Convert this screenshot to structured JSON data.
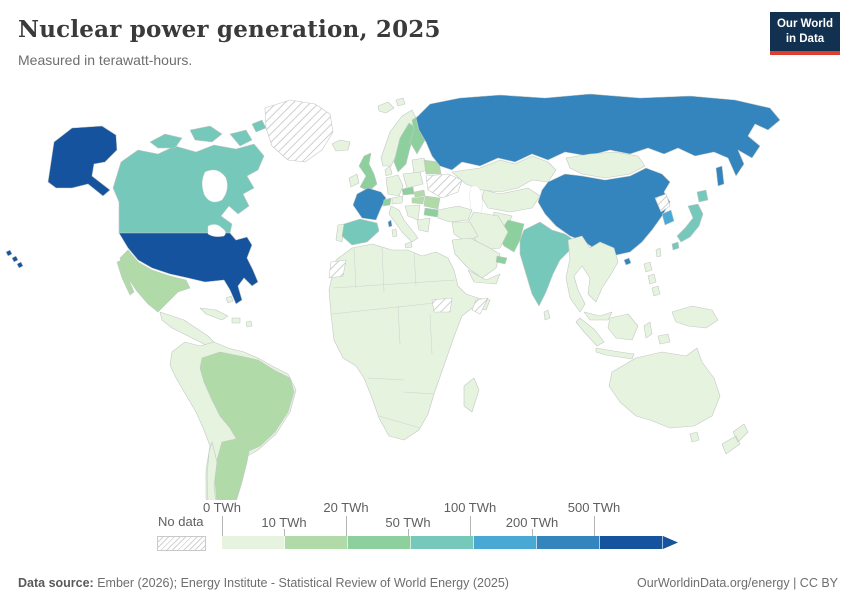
{
  "header": {
    "title": "Nuclear power generation, 2025",
    "subtitle": "Measured in terawatt-hours."
  },
  "logo": {
    "line1": "Our World",
    "line2": "in Data",
    "bg": "#12304f",
    "accent": "#dc3e32"
  },
  "legend": {
    "no_data_label": "No data",
    "ticks": [
      "0 TWh",
      "10 TWh",
      "20 TWh",
      "50 TWh",
      "100 TWh",
      "200 TWh",
      "500 TWh"
    ],
    "bins": [
      {
        "range": "0-10 TWh",
        "color": "#e6f3df"
      },
      {
        "range": "10-20 TWh",
        "color": "#b0daa8"
      },
      {
        "range": "20-50 TWh",
        "color": "#8ecf9e"
      },
      {
        "range": "50-100 TWh",
        "color": "#76c8ba"
      },
      {
        "range": "100-200 TWh",
        "color": "#4aa8d5"
      },
      {
        "range": "200-500 TWh",
        "color": "#3484be"
      },
      {
        "range": "500+ TWh",
        "color": "#15539e"
      }
    ],
    "no_data_pattern": "diagonal-hatch"
  },
  "footer": {
    "datasource_label": "Data source:",
    "datasource_text": " Ember (2026); Energy Institute - Statistical Review of World Energy (2025)",
    "credit": "OurWorldinData.org/energy | CC BY"
  },
  "chart_data": {
    "type": "choropleth",
    "title": "Nuclear power generation, 2025",
    "unit": "TWh",
    "legend_position": "bottom",
    "bins": [
      "0-10",
      "10-20",
      "20-50",
      "50-100",
      "100-200",
      "200-500",
      "500+"
    ],
    "regions": {
      "united-states": "500+",
      "canada": "50-100",
      "greenland": "no-data",
      "mexico": "10-20",
      "central-america": "0-10",
      "cuba": "0-10",
      "caribbean-other": "0-10",
      "brazil": "10-20",
      "argentina": "10-20",
      "chile": "0-10",
      "south-america-other": "0-10",
      "iceland": "0-10",
      "united-kingdom": "20-50",
      "ireland": "0-10",
      "norway": "0-10",
      "sweden": "20-50",
      "finland": "20-50",
      "baltics": "0-10",
      "denmark": "0-10",
      "germany": "0-10",
      "poland": "0-10",
      "belarus": "10-20",
      "ukraine": "no-data",
      "france": "200-500",
      "spain": "50-100",
      "portugal": "0-10",
      "italy": "0-10",
      "switzerland": "20-50",
      "austria": "0-10",
      "czechia": "20-50",
      "slovakia": "10-20",
      "hungary": "10-20",
      "romania": "10-20",
      "bulgaria": "20-50",
      "balkans": "0-10",
      "greece": "0-10",
      "russia": "200-500",
      "kazakhstan": "0-10",
      "central-asia": "0-10",
      "mongolia": "0-10",
      "china": "200-500",
      "north-korea": "no-data",
      "south-korea": "100-200",
      "japan": "50-100",
      "taiwan": "0-10",
      "india": "50-100",
      "sri-lanka": "0-10",
      "pakistan": "20-50",
      "afghanistan": "0-10",
      "iran": "0-10",
      "turkey": "0-10",
      "middle-east-other": "0-10",
      "saudi-arabia": "0-10",
      "united-arab-emirates": "20-50",
      "southeast-asia": "0-10",
      "indonesia": "0-10",
      "philippines": "0-10",
      "new-guinea": "0-10",
      "australia": "0-10",
      "new-zealand": "0-10",
      "africa-other": "0-10",
      "western-sahara": "no-data",
      "south-sudan": "no-data",
      "somalia": "no-data",
      "madagascar": "0-10"
    }
  }
}
